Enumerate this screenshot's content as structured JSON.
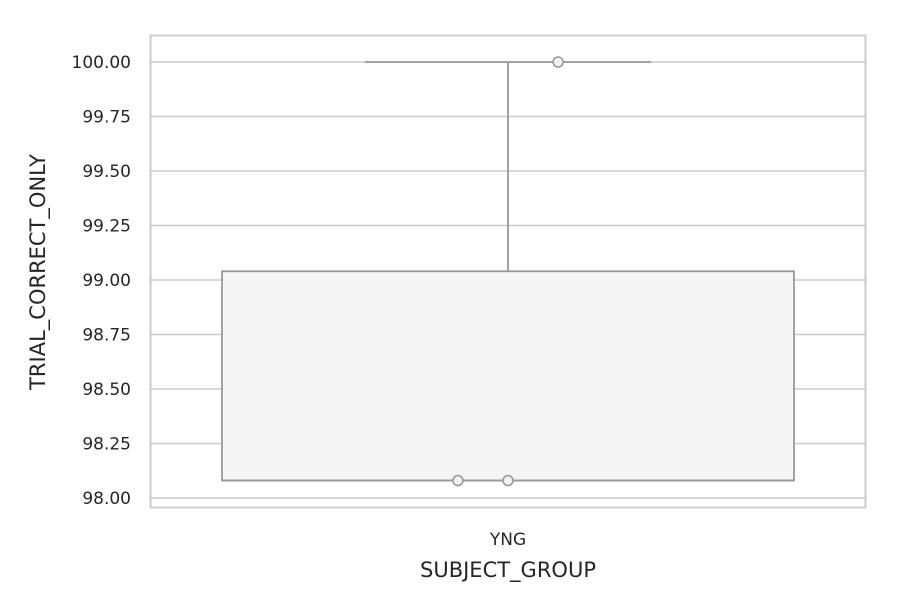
{
  "chart_data": {
    "type": "box",
    "xlabel": "SUBJECT_GROUP",
    "ylabel": "TRIAL_CORRECT_ONLY",
    "ylim": [
      97.95,
      100.12
    ],
    "yticks": [
      98.0,
      98.25,
      98.5,
      98.75,
      99.0,
      99.25,
      99.5,
      99.75,
      100.0
    ],
    "ytick_labels": [
      "98.00",
      "98.25",
      "98.50",
      "98.75",
      "99.00",
      "99.25",
      "99.50",
      "99.75",
      "100.00"
    ],
    "categories": [
      "YNG"
    ],
    "boxes": [
      {
        "category": "YNG",
        "q1": 98.08,
        "median": 98.08,
        "q3": 99.04,
        "whisker_low": 98.08,
        "whisker_high": 100.0,
        "points": [
          {
            "x_offset": -0.07,
            "value": 98.08
          },
          {
            "x_offset": 0.0,
            "value": 98.08
          },
          {
            "x_offset": 0.07,
            "value": 100.0
          }
        ]
      }
    ],
    "grid": true,
    "colors": {
      "box_fill": "#f5f5f5",
      "box_edge": "#999999",
      "grid": "#cccccc",
      "spine": "#cccccc",
      "text": "#262626"
    }
  }
}
